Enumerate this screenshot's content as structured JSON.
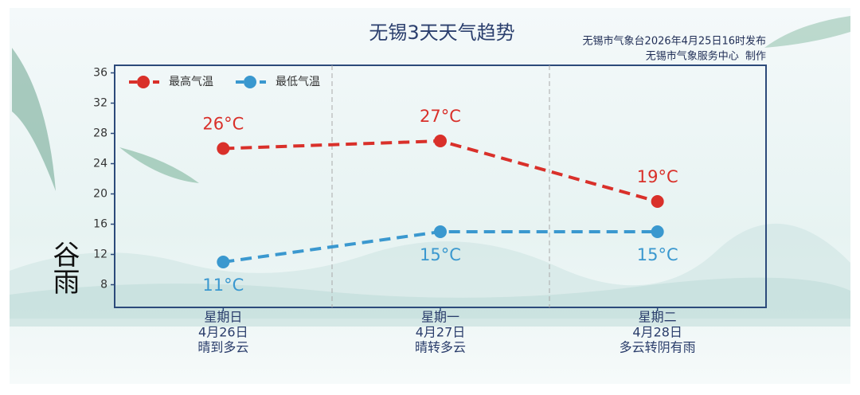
{
  "chart_data": {
    "type": "line",
    "title": "无锡3天天气趋势",
    "subtitle": [
      "无锡市气象台2026年4月25日16时发布",
      "无锡市气象服务中心  制作"
    ],
    "logo": "谷雨",
    "categories": [
      [
        "星期日",
        "4月26日",
        "晴到多云"
      ],
      [
        "星期一",
        "4月27日",
        "晴转多云"
      ],
      [
        "星期二",
        "4月28日",
        "多云转阴有雨"
      ]
    ],
    "series": [
      {
        "name": "最高气温",
        "color": "#d9302a",
        "values": [
          26,
          27,
          19
        ],
        "value_labels": [
          "26°C",
          "27°C",
          "19°C"
        ],
        "label_position": "above"
      },
      {
        "name": "最低气温",
        "color": "#3a98cf",
        "values": [
          11,
          15,
          15
        ],
        "value_labels": [
          "11°C",
          "15°C",
          "15°C"
        ],
        "label_position": "below"
      }
    ],
    "ylim": [
      5,
      37
    ],
    "yticks": [
      8,
      12,
      16,
      20,
      24,
      28,
      32,
      36
    ],
    "legend": "upper left"
  }
}
